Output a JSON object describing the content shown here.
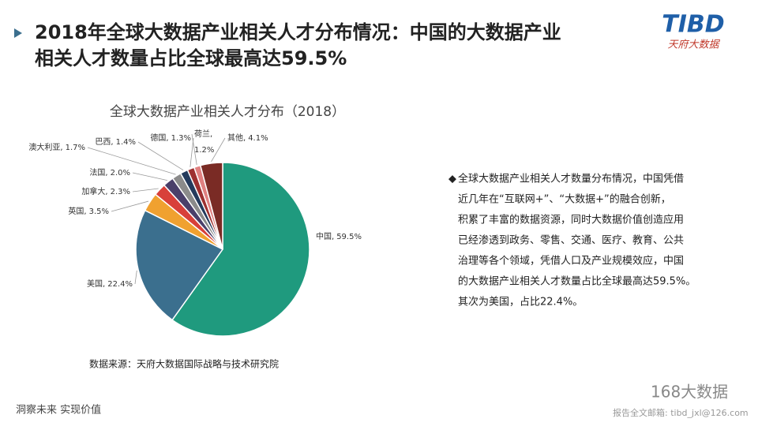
{
  "header": {
    "title_lines": [
      "2018年全球大数据产业相关人才分布情况：中国的大数据产业",
      "相关人才数量占比全球最高达59.5%"
    ],
    "logo": "TIBD",
    "logo_sub": "天府大数据"
  },
  "chart_data": {
    "type": "pie",
    "title": "全球大数据产业相关人才分布（2018）",
    "categories": [
      "中国",
      "美国",
      "英国",
      "加拿大",
      "法国",
      "澳大利亚",
      "巴西",
      "德国",
      "荷兰",
      "其他"
    ],
    "values": [
      59.5,
      22.4,
      3.5,
      2.3,
      2.0,
      1.7,
      1.4,
      1.3,
      1.2,
      4.1
    ],
    "value_labels": [
      "59.5%",
      "22.4%",
      "3.5%",
      "2.3%",
      "2.0%",
      "1.7%",
      "1.4%",
      "1.3%",
      "1.2%",
      "4.1%"
    ],
    "label_separator": ",",
    "colors": [
      "#1f9a7e",
      "#3b6f8e",
      "#f0a130",
      "#d8403a",
      "#4a3f6a",
      "#8b8b8b",
      "#243a5c",
      "#9e3030",
      "#e08080",
      "#7a2b25"
    ],
    "source": "数据来源：天府大数据国际战略与技术研究院"
  },
  "note": {
    "bullet": "◆",
    "lines": [
      "全球大数据产业相关人才数量分布情况，中国凭借",
      "近几年在“互联网+”、“大数据+”的融合创新，",
      "积累了丰富的数据资源，同时大数据价值创造应用",
      "已经渗透到政务、零售、交通、医疗、教育、公共",
      "治理等各个领域，凭借人口及产业规模效应，中国",
      "的大数据产业相关人才数量占比全球最高达59.5%。",
      "其次为美国，占比22.4%。"
    ]
  },
  "footer": {
    "slogan": "洞察未来 实现价值",
    "watermark": "168大数据",
    "email": "报告全文邮箱: tibd_jxl@126.com"
  }
}
